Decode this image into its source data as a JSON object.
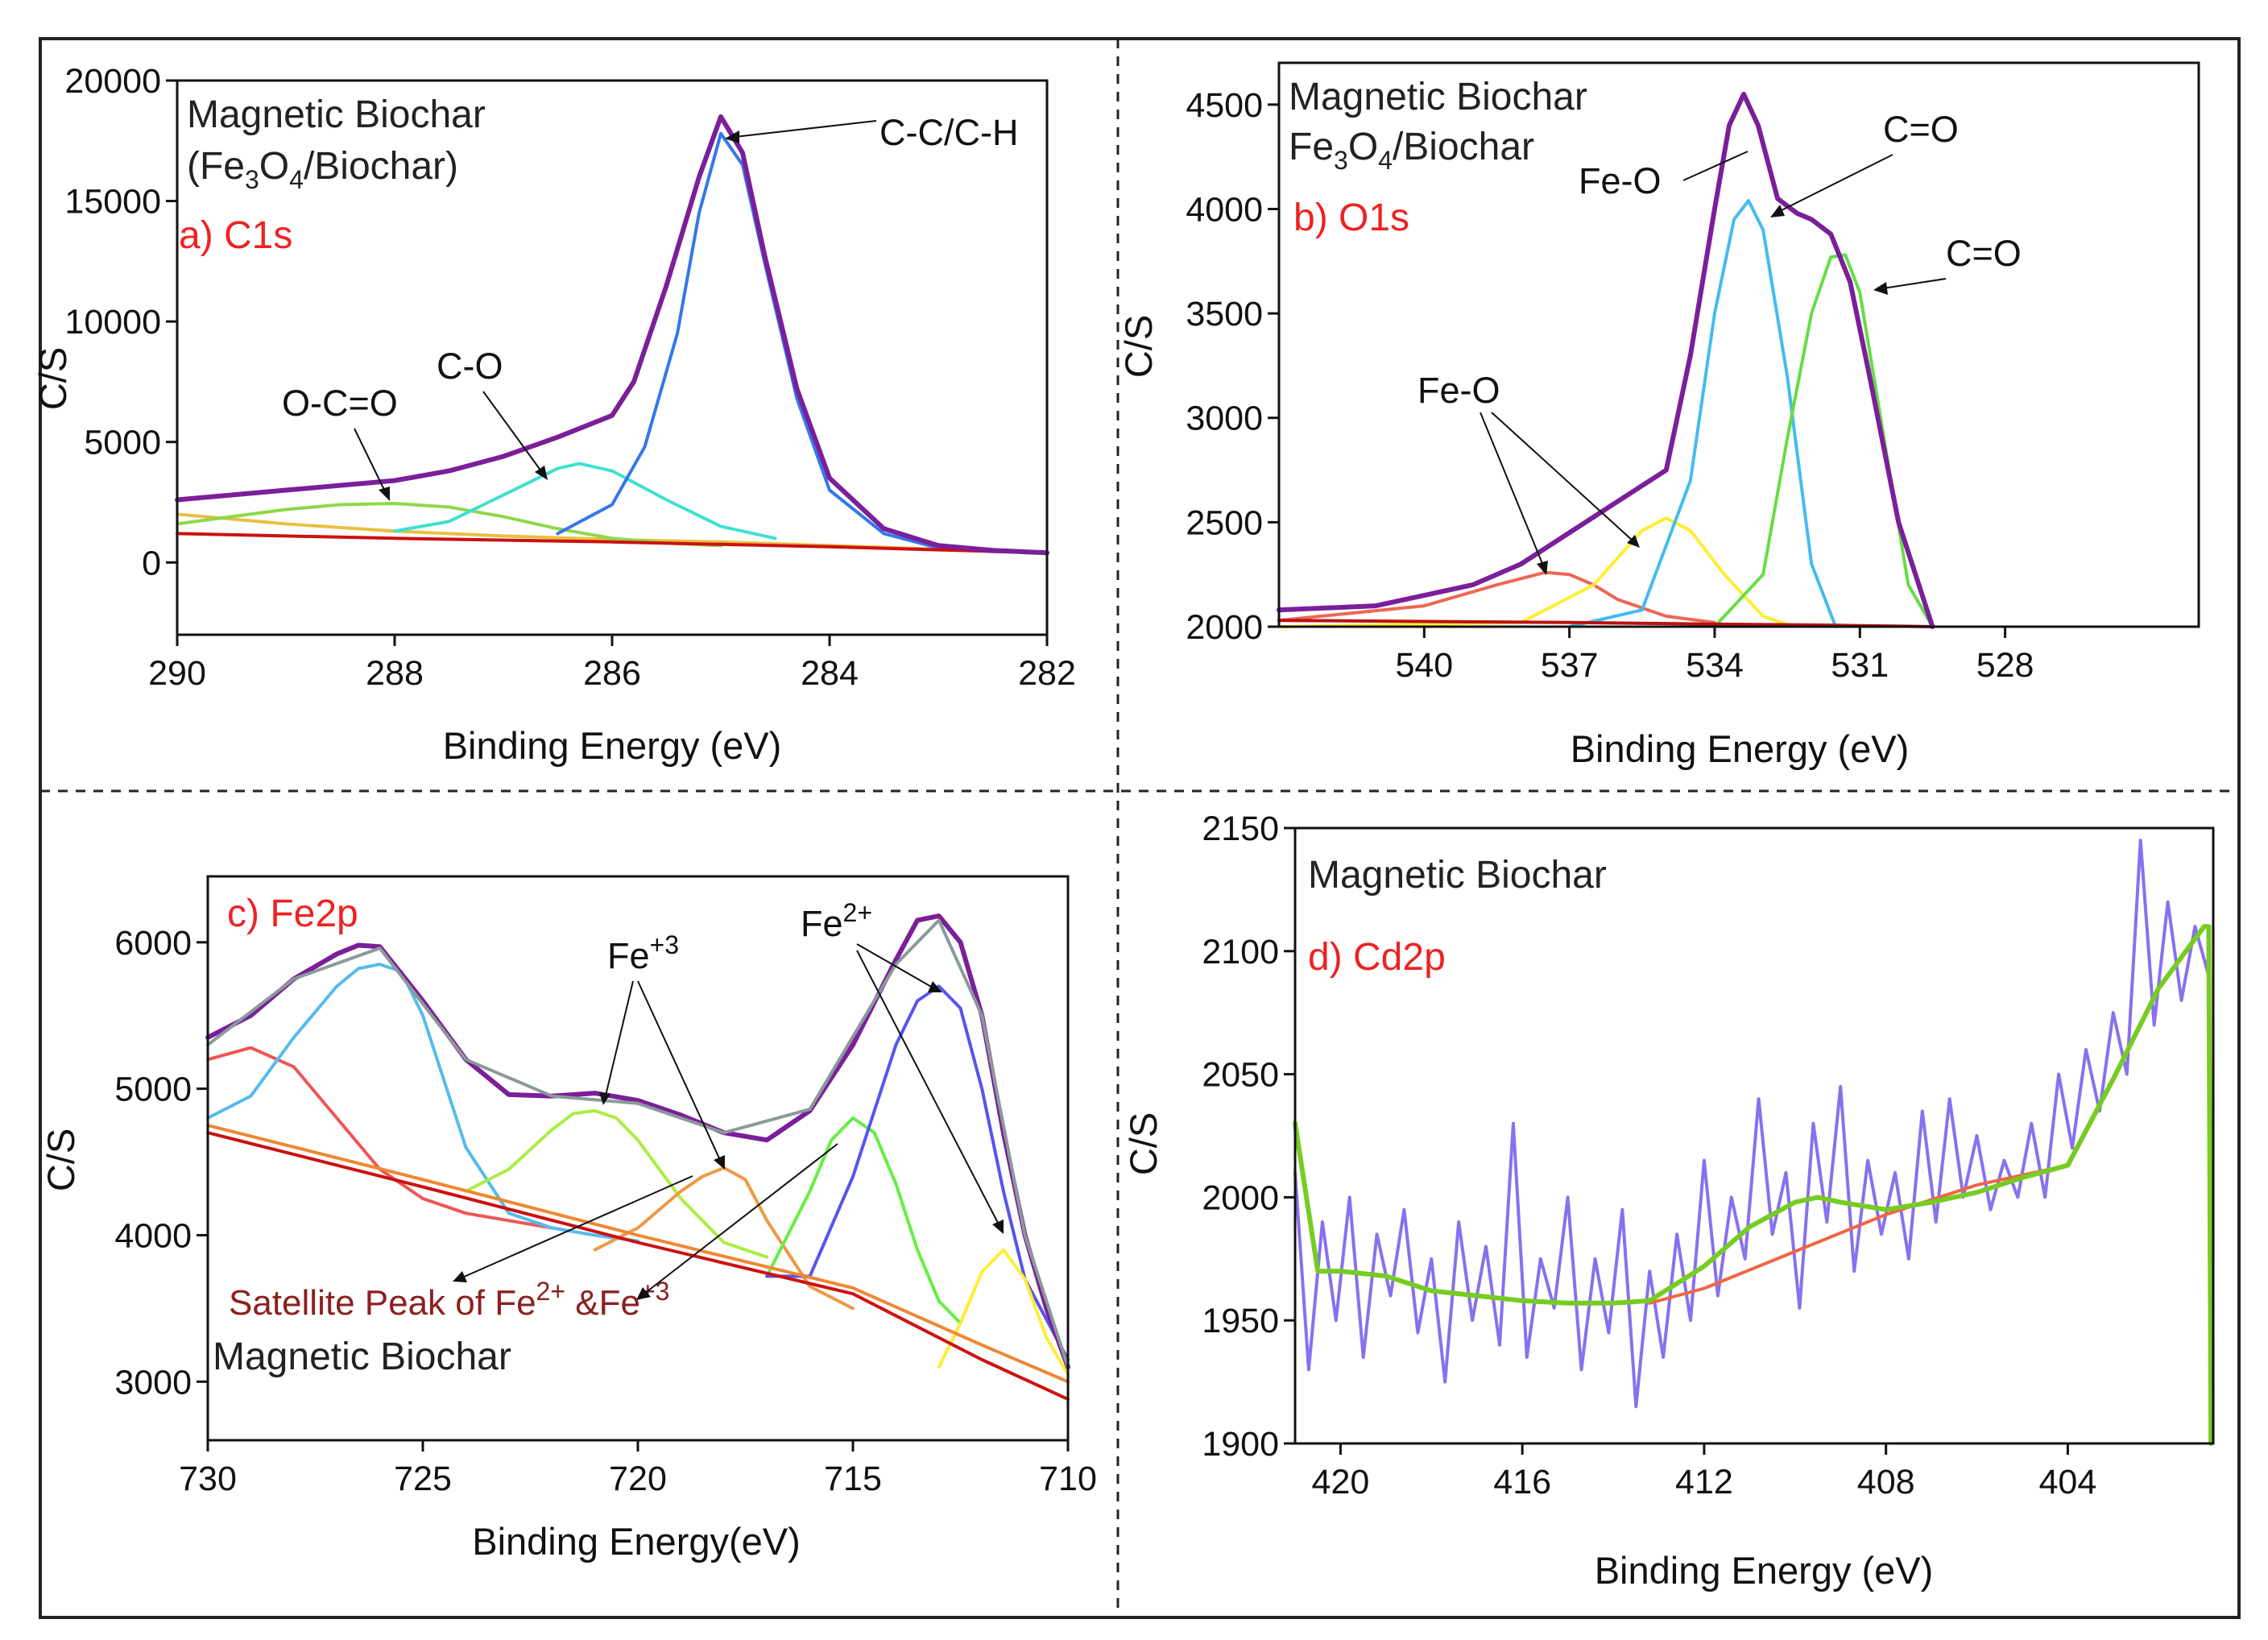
{
  "chart_data": [
    {
      "type": "line",
      "panel_label": "a) C1s",
      "sample_lines": [
        "Magnetic Biochar",
        "(Fe",
        "3",
        "O",
        "4",
        "/Biochar)"
      ],
      "xlabel": "Binding Energy (eV)",
      "ylabel": "C/S",
      "xlim": [
        290,
        282
      ],
      "ylim": [
        -3000,
        20000
      ],
      "xticks": [
        "290",
        "288",
        "286",
        "284",
        "282"
      ],
      "yticks": [
        "20000",
        "15000",
        "10000",
        "5000",
        "0"
      ],
      "annotations": [
        "C-C/C-H",
        "C-O",
        "O-C=O"
      ],
      "series": [
        {
          "color": "#e8c040",
          "x": [
            290,
            289,
            288,
            287,
            286,
            285,
            284,
            283,
            282
          ],
          "y": [
            2000,
            1600,
            1300,
            1100,
            950,
            850,
            700,
            550,
            400
          ]
        },
        {
          "color": "#8ed84a",
          "x": [
            290,
            289.5,
            289,
            288.5,
            288,
            287.5,
            287,
            286.5,
            286,
            285.5,
            285
          ],
          "y": [
            1600,
            1900,
            2200,
            2400,
            2450,
            2300,
            1900,
            1400,
            1000,
            800,
            700
          ]
        },
        {
          "color": "#40e0d0",
          "x": [
            288,
            287.5,
            287,
            286.5,
            286.3,
            286,
            285.5,
            285,
            284.5
          ],
          "y": [
            1300,
            1700,
            2800,
            3900,
            4100,
            3800,
            2600,
            1500,
            1000
          ]
        },
        {
          "color": "#3377ee",
          "x": [
            286.5,
            286,
            285.7,
            285.4,
            285.2,
            285,
            284.8,
            284.6,
            284.3,
            284,
            283.5,
            283,
            282.5,
            282
          ],
          "y": [
            1200,
            2400,
            4800,
            9500,
            14500,
            17800,
            16500,
            12500,
            6800,
            3000,
            1200,
            600,
            450,
            400
          ]
        },
        {
          "color": "#cc1111",
          "x": [
            290,
            288,
            286,
            284,
            282
          ],
          "y": [
            1200,
            1000,
            850,
            650,
            400
          ]
        },
        {
          "color": "#7a1f99",
          "x": [
            290,
            289,
            288,
            287.5,
            287,
            286.5,
            286,
            285.8,
            285.5,
            285.2,
            285,
            284.8,
            284.6,
            284.3,
            284,
            283.5,
            283,
            282.5,
            282
          ],
          "y": [
            2600,
            3000,
            3400,
            3800,
            4400,
            5200,
            6100,
            7500,
            11500,
            16000,
            18500,
            17000,
            12800,
            7200,
            3500,
            1400,
            700,
            500,
            400
          ]
        }
      ]
    },
    {
      "type": "line",
      "panel_label": "b) O1s",
      "sample_lines": [
        "Magnetic Biochar",
        "Fe",
        "3",
        "O",
        "4",
        "/Biochar"
      ],
      "xlabel": "Binding Energy (eV)",
      "ylabel": "C/S",
      "xlim": [
        543,
        524
      ],
      "ylim": [
        2000,
        4700
      ],
      "xticks": [
        "540",
        "537",
        "534",
        "531",
        "528"
      ],
      "yticks": [
        "4500",
        "4000",
        "3500",
        "3000",
        "2500",
        "2000"
      ],
      "annotations": [
        "Fe-O",
        "C=O",
        "C=O",
        "Fe-O"
      ],
      "series": [
        {
          "color": "#ee6655",
          "x": [
            543,
            540,
            538.5,
            537.5,
            537,
            536.5,
            536,
            535,
            534
          ],
          "y": [
            2030,
            2100,
            2200,
            2260,
            2250,
            2200,
            2130,
            2050,
            2020
          ]
        },
        {
          "color": "#ffee33",
          "x": [
            543,
            538,
            536.5,
            535.5,
            535,
            534.5,
            533.8,
            533,
            532.5
          ],
          "y": [
            2000,
            2020,
            2200,
            2460,
            2520,
            2460,
            2250,
            2050,
            2010
          ]
        },
        {
          "color": "#44bbee",
          "x": [
            537,
            535.5,
            534.5,
            534,
            533.6,
            533.3,
            533,
            532.5,
            532,
            531.5
          ],
          "y": [
            2000,
            2080,
            2700,
            3500,
            3950,
            4040,
            3900,
            3200,
            2300,
            2000
          ]
        },
        {
          "color": "#66dd44",
          "x": [
            534,
            533,
            532.5,
            532,
            531.6,
            531.3,
            531,
            530.5,
            530,
            529.5
          ],
          "y": [
            2000,
            2250,
            2900,
            3500,
            3770,
            3780,
            3600,
            2900,
            2200,
            2000
          ]
        },
        {
          "color": "#bb1111",
          "x": [
            543,
            540,
            537,
            535,
            534,
            533,
            532,
            531,
            530,
            529.5
          ],
          "y": [
            2030,
            2025,
            2020,
            2015,
            2012,
            2010,
            2008,
            2005,
            2002,
            2000
          ]
        },
        {
          "color": "#7a1f99",
          "x": [
            543,
            541,
            539,
            538,
            537,
            536,
            535,
            534.5,
            534,
            533.7,
            533.4,
            533.1,
            532.7,
            532.3,
            532,
            531.6,
            531.2,
            530.8,
            530.2,
            529.5
          ],
          "y": [
            2080,
            2100,
            2200,
            2300,
            2450,
            2600,
            2750,
            3300,
            4000,
            4400,
            4550,
            4400,
            4050,
            3980,
            3950,
            3880,
            3650,
            3200,
            2500,
            2000
          ]
        }
      ]
    },
    {
      "type": "line",
      "panel_label": "c) Fe2p",
      "sample_lines": [
        "Magnetic Biochar"
      ],
      "xlabel": "Binding Energy(eV)",
      "ylabel": "C/S",
      "xlim": [
        730,
        710
      ],
      "ylim": [
        2600,
        6450
      ],
      "xticks": [
        "730",
        "725",
        "720",
        "715",
        "710"
      ],
      "yticks": [
        "6000",
        "5000",
        "4000",
        "3000"
      ],
      "annotations": [
        "Fe",
        "+3",
        "Fe",
        "2+",
        "Satellite Peak of Fe",
        "2+",
        " &Fe",
        "+3"
      ],
      "series": [
        {
          "color": "#ee5555",
          "x": [
            730,
            729,
            728,
            727,
            726,
            725,
            724,
            723,
            722
          ],
          "y": [
            5200,
            5280,
            5150,
            4800,
            4450,
            4250,
            4150,
            4100,
            4050
          ]
        },
        {
          "color": "#55bbee",
          "x": [
            730,
            729,
            728,
            727,
            726.5,
            726,
            725.5,
            725,
            724,
            723,
            722,
            721,
            720
          ],
          "y": [
            4800,
            4950,
            5350,
            5700,
            5820,
            5850,
            5800,
            5500,
            4600,
            4150,
            4050,
            4000,
            3960
          ]
        },
        {
          "color": "#aaee44",
          "x": [
            724,
            723,
            722,
            721.5,
            721,
            720.5,
            720,
            719,
            718,
            717
          ],
          "y": [
            4300,
            4450,
            4720,
            4830,
            4850,
            4800,
            4650,
            4250,
            3950,
            3850
          ]
        },
        {
          "color": "#ee9944",
          "x": [
            721,
            720,
            719,
            718.5,
            718,
            717.5,
            717,
            716,
            715
          ],
          "y": [
            3900,
            4050,
            4300,
            4400,
            4460,
            4380,
            4100,
            3650,
            3500
          ]
        },
        {
          "color": "#66ee44",
          "x": [
            717,
            716,
            715.5,
            715,
            714.5,
            714,
            713.5,
            713,
            712.5
          ],
          "y": [
            3720,
            4300,
            4650,
            4800,
            4700,
            4350,
            3900,
            3550,
            3400
          ]
        },
        {
          "color": "#5555ee",
          "x": [
            717,
            716,
            715,
            714,
            713.5,
            713,
            712.5,
            712,
            711.5,
            711,
            710
          ],
          "y": [
            3720,
            3720,
            4400,
            5300,
            5600,
            5700,
            5550,
            5000,
            4300,
            3700,
            3150
          ]
        },
        {
          "color": "#ffee33",
          "x": [
            713,
            712.5,
            712,
            711.5,
            711,
            710.5,
            710
          ],
          "y": [
            3100,
            3400,
            3750,
            3900,
            3700,
            3300,
            3050
          ]
        },
        {
          "color": "#ee8833",
          "x": [
            730,
            725,
            720,
            715,
            712,
            710
          ],
          "y": [
            4750,
            4380,
            4000,
            3640,
            3250,
            3000
          ]
        },
        {
          "color": "#cc1111",
          "x": [
            730,
            725,
            720,
            715,
            712,
            710
          ],
          "y": [
            4700,
            4330,
            3950,
            3600,
            3150,
            2880
          ]
        },
        {
          "color": "#7a1f99",
          "x": [
            730,
            729,
            728,
            727,
            726.5,
            726,
            725,
            724,
            723,
            722,
            721,
            720,
            719,
            718,
            717,
            716,
            715,
            714,
            713.5,
            713,
            712.5,
            712,
            711.5,
            711,
            710.5,
            710
          ],
          "y": [
            5350,
            5500,
            5750,
            5920,
            5980,
            5970,
            5600,
            5200,
            4960,
            4950,
            4970,
            4920,
            4820,
            4700,
            4650,
            4850,
            5300,
            5880,
            6150,
            6180,
            6000,
            5500,
            4700,
            4000,
            3500,
            3100
          ]
        },
        {
          "color": "#8a9a9a",
          "x": [
            730,
            728,
            726,
            724,
            722,
            720,
            718,
            716,
            714,
            713,
            712,
            711,
            710
          ],
          "y": [
            5300,
            5750,
            5960,
            5200,
            4950,
            4900,
            4700,
            4860,
            5850,
            6150,
            5500,
            4000,
            3100
          ]
        }
      ]
    },
    {
      "type": "line",
      "panel_label": "d) Cd2p",
      "sample_lines": [
        "Magnetic Biochar"
      ],
      "xlabel": "Binding Energy (eV)",
      "ylabel": "C/S",
      "xlim": [
        421,
        400.8
      ],
      "ylim": [
        1900,
        2150
      ],
      "xticks": [
        "420",
        "416",
        "412",
        "408",
        "404"
      ],
      "yticks": [
        "2150",
        "2100",
        "2050",
        "2000",
        "1950",
        "1900"
      ],
      "annotations": [],
      "series": [
        {
          "color": "#8870f0",
          "x": [
            421,
            420.7,
            420.4,
            420.1,
            419.8,
            419.5,
            419.2,
            418.9,
            418.6,
            418.3,
            418,
            417.7,
            417.4,
            417.1,
            416.8,
            416.5,
            416.2,
            415.9,
            415.6,
            415.3,
            415,
            414.7,
            414.4,
            414.1,
            413.8,
            413.5,
            413.2,
            412.9,
            412.6,
            412.3,
            412,
            411.7,
            411.4,
            411.1,
            410.8,
            410.5,
            410.2,
            409.9,
            409.6,
            409.3,
            409,
            408.7,
            408.4,
            408.1,
            407.8,
            407.5,
            407.2,
            406.9,
            406.6,
            406.3,
            406,
            405.7,
            405.4,
            405.1,
            404.8,
            404.5,
            404.2,
            403.9,
            403.6,
            403.3,
            403,
            402.7,
            402.4,
            402.1,
            401.8,
            401.5,
            401.2,
            400.9
          ],
          "y": [
            2010,
            1930,
            1990,
            1950,
            2000,
            1935,
            1985,
            1960,
            1995,
            1945,
            1975,
            1925,
            1990,
            1950,
            1980,
            1940,
            2030,
            1935,
            1975,
            1955,
            2000,
            1930,
            1975,
            1945,
            1995,
            1915,
            1970,
            1935,
            1985,
            1950,
            2015,
            1960,
            2000,
            1975,
            2040,
            1985,
            2010,
            1955,
            2030,
            1990,
            2045,
            1970,
            2015,
            1985,
            2010,
            1975,
            2035,
            1990,
            2040,
            2000,
            2025,
            1995,
            2015,
            2000,
            2030,
            2000,
            2050,
            2020,
            2060,
            2035,
            2075,
            2050,
            2145,
            2070,
            2120,
            2080,
            2110,
            2090
          ]
        },
        {
          "color": "#ee6644",
          "x": [
            413.2,
            412,
            410,
            408,
            406,
            404
          ],
          "y": [
            1957,
            1963,
            1978,
            1993,
            2005,
            2013
          ]
        },
        {
          "color": "#77cc22",
          "x": [
            421,
            420.5,
            420,
            419,
            418,
            417,
            416,
            415,
            414,
            413.2,
            412,
            411,
            410,
            409.5,
            409,
            408,
            407,
            406,
            405,
            404,
            403,
            402,
            401,
            400.9,
            400.85
          ],
          "y": [
            2030,
            1970,
            1970,
            1968,
            1962,
            1960,
            1958,
            1957,
            1957,
            1958,
            1972,
            1988,
            1998,
            2000,
            1998,
            1995,
            1998,
            2002,
            2008,
            2013,
            2048,
            2085,
            2110,
            2110,
            1900
          ]
        }
      ]
    }
  ]
}
